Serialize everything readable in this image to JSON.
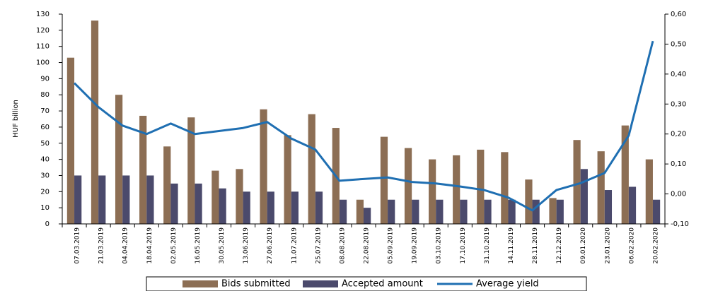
{
  "chart_data": {
    "type": "bar_line",
    "y_label": "HUF billion",
    "categories": [
      "07.03.2019",
      "21.03.2019",
      "04.04.2019",
      "18.04.2019",
      "02.05.2019",
      "16.05.2019",
      "30.05.2019",
      "13.06.2019",
      "27.06.2019",
      "11.07.2019",
      "25.07.2019",
      "08.08.2019",
      "22.08.2019",
      "05.09.2019",
      "19.09.2019",
      "03.10.2019",
      "17.10.2019",
      "31.10.2019",
      "14.11.2019",
      "28.11.2019",
      "12.12.2019",
      "09.01.2020",
      "23.01.2020",
      "06.02.2020",
      "20.02.2020"
    ],
    "series": [
      {
        "name": "Bids submitted",
        "color": "#8c6e54",
        "values": [
          103,
          126,
          80,
          67,
          48,
          66,
          33,
          34,
          71,
          55,
          68,
          59.5,
          15,
          54,
          47,
          40,
          42.5,
          46,
          44.5,
          27.5,
          16,
          52,
          45,
          61,
          40
        ]
      },
      {
        "name": "Accepted amount",
        "color": "#4b4a6c",
        "values": [
          30,
          30,
          30,
          30,
          25,
          25,
          22,
          20,
          20,
          20,
          20,
          15,
          10,
          15,
          15,
          15,
          15,
          15,
          15,
          15,
          15,
          34,
          21,
          23,
          15
        ]
      },
      {
        "name": "Average yield",
        "color": "#1f6fb2",
        "axis": "y2",
        "values": [
          0.37,
          0.29,
          0.228,
          0.2,
          0.235,
          0.2,
          0.21,
          0.22,
          0.24,
          0.185,
          0.148,
          0.044,
          0.05,
          0.055,
          0.04,
          0.035,
          0.025,
          0.013,
          -0.012,
          -0.055,
          0.013,
          0.036,
          0.07,
          0.195,
          0.51
        ]
      }
    ],
    "ylim": [
      0,
      130
    ],
    "yticks": [
      0,
      10,
      20,
      30,
      40,
      50,
      60,
      70,
      80,
      90,
      100,
      110,
      120,
      130
    ],
    "y2lim": [
      -0.1,
      0.6
    ],
    "y2ticks": [
      {
        "value": -0.1,
        "label": "-0,10"
      },
      {
        "value": 0,
        "label": "0,00"
      },
      {
        "value": 0.1,
        "label": "0,10"
      },
      {
        "value": 0.2,
        "label": "0,20"
      },
      {
        "value": 0.3,
        "label": "0,30"
      },
      {
        "value": 0.4,
        "label": "0,40"
      },
      {
        "value": 0.5,
        "label": "0,50"
      },
      {
        "value": 0.6,
        "label": "0,60"
      }
    ]
  }
}
